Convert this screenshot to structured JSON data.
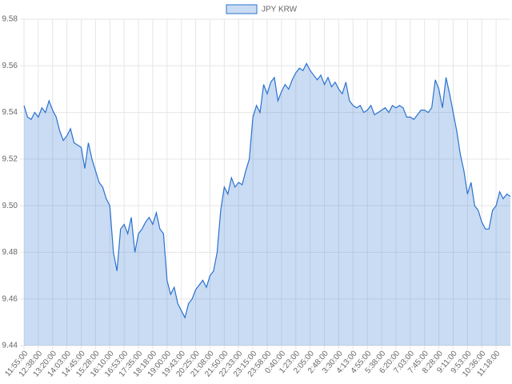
{
  "chart_data": {
    "type": "area",
    "categories": [
      "11:55:00",
      null,
      null,
      null,
      "12:38:00",
      null,
      null,
      null,
      "13:20:00",
      null,
      null,
      null,
      "14:03:00",
      null,
      null,
      null,
      "14:45:00",
      null,
      null,
      null,
      "15:28:00",
      null,
      null,
      null,
      "16:10:00",
      null,
      null,
      null,
      "16:53:00",
      null,
      null,
      null,
      "17:35:00",
      null,
      null,
      null,
      "18:18:00",
      null,
      null,
      null,
      "19:00:00",
      null,
      null,
      null,
      "19:43:00",
      null,
      null,
      null,
      "20:25:00",
      null,
      null,
      null,
      "21:08:00",
      null,
      null,
      null,
      "21:50:00",
      null,
      null,
      null,
      "22:33:00",
      null,
      null,
      null,
      "23:15:00",
      null,
      null,
      null,
      "23:58:00",
      null,
      null,
      null,
      "0:40:00",
      null,
      null,
      null,
      "1:23:00",
      null,
      null,
      null,
      "2:05:00",
      null,
      null,
      null,
      "2:48:00",
      null,
      null,
      null,
      "3:30:00",
      null,
      null,
      null,
      "4:13:00",
      null,
      null,
      null,
      "4:55:00",
      null,
      null,
      null,
      "5:38:00",
      null,
      null,
      null,
      "6:20:00",
      null,
      null,
      null,
      "7:03:00",
      null,
      null,
      null,
      "7:45:00",
      null,
      null,
      null,
      "8:28:00",
      null,
      null,
      null,
      "9:11:00",
      null,
      null,
      null,
      "9:53:00",
      null,
      null,
      null,
      "10:36:00",
      null,
      null,
      null,
      "11:18:00",
      null,
      null,
      null,
      null
    ],
    "series": [
      {
        "name": "JPY KRW",
        "color": "#2a72cf",
        "values": [
          9.543,
          9.538,
          9.537,
          9.54,
          9.538,
          9.542,
          9.54,
          9.545,
          9.541,
          9.538,
          9.532,
          9.528,
          9.53,
          9.533,
          9.527,
          9.526,
          9.525,
          9.516,
          9.527,
          9.52,
          9.515,
          9.51,
          9.508,
          9.503,
          9.5,
          9.48,
          9.472,
          9.49,
          9.492,
          9.488,
          9.495,
          9.48,
          9.488,
          9.49,
          9.493,
          9.495,
          9.492,
          9.497,
          9.49,
          9.488,
          9.468,
          9.462,
          9.465,
          9.458,
          9.455,
          9.452,
          9.458,
          9.46,
          9.464,
          9.466,
          9.468,
          9.465,
          9.47,
          9.472,
          9.48,
          9.498,
          9.508,
          9.505,
          9.512,
          9.508,
          9.51,
          9.509,
          9.515,
          9.52,
          9.538,
          9.543,
          9.54,
          9.552,
          9.548,
          9.553,
          9.555,
          9.545,
          9.549,
          9.552,
          9.55,
          9.554,
          9.557,
          9.559,
          9.558,
          9.561,
          9.558,
          9.556,
          9.554,
          9.556,
          9.552,
          9.555,
          9.551,
          9.553,
          9.55,
          9.548,
          9.553,
          9.545,
          9.543,
          9.542,
          9.543,
          9.54,
          9.541,
          9.543,
          9.539,
          9.54,
          9.541,
          9.542,
          9.54,
          9.543,
          9.542,
          9.543,
          9.542,
          9.538,
          9.538,
          9.537,
          9.539,
          9.541,
          9.541,
          9.54,
          9.542,
          9.554,
          9.55,
          9.542,
          9.555,
          9.548,
          9.54,
          9.532,
          9.522,
          9.515,
          9.505,
          9.51,
          9.5,
          9.498,
          9.493,
          9.49,
          9.49,
          9.498,
          9.5,
          9.506,
          9.503,
          9.505,
          9.504
        ]
      }
    ],
    "ylim": [
      9.44,
      9.58
    ],
    "yticks": [
      9.44,
      9.46,
      9.48,
      {
        "value": 9.5,
        "label": "9.50"
      },
      9.52,
      9.54,
      9.56,
      9.58
    ],
    "grid": true,
    "legend": "top"
  }
}
